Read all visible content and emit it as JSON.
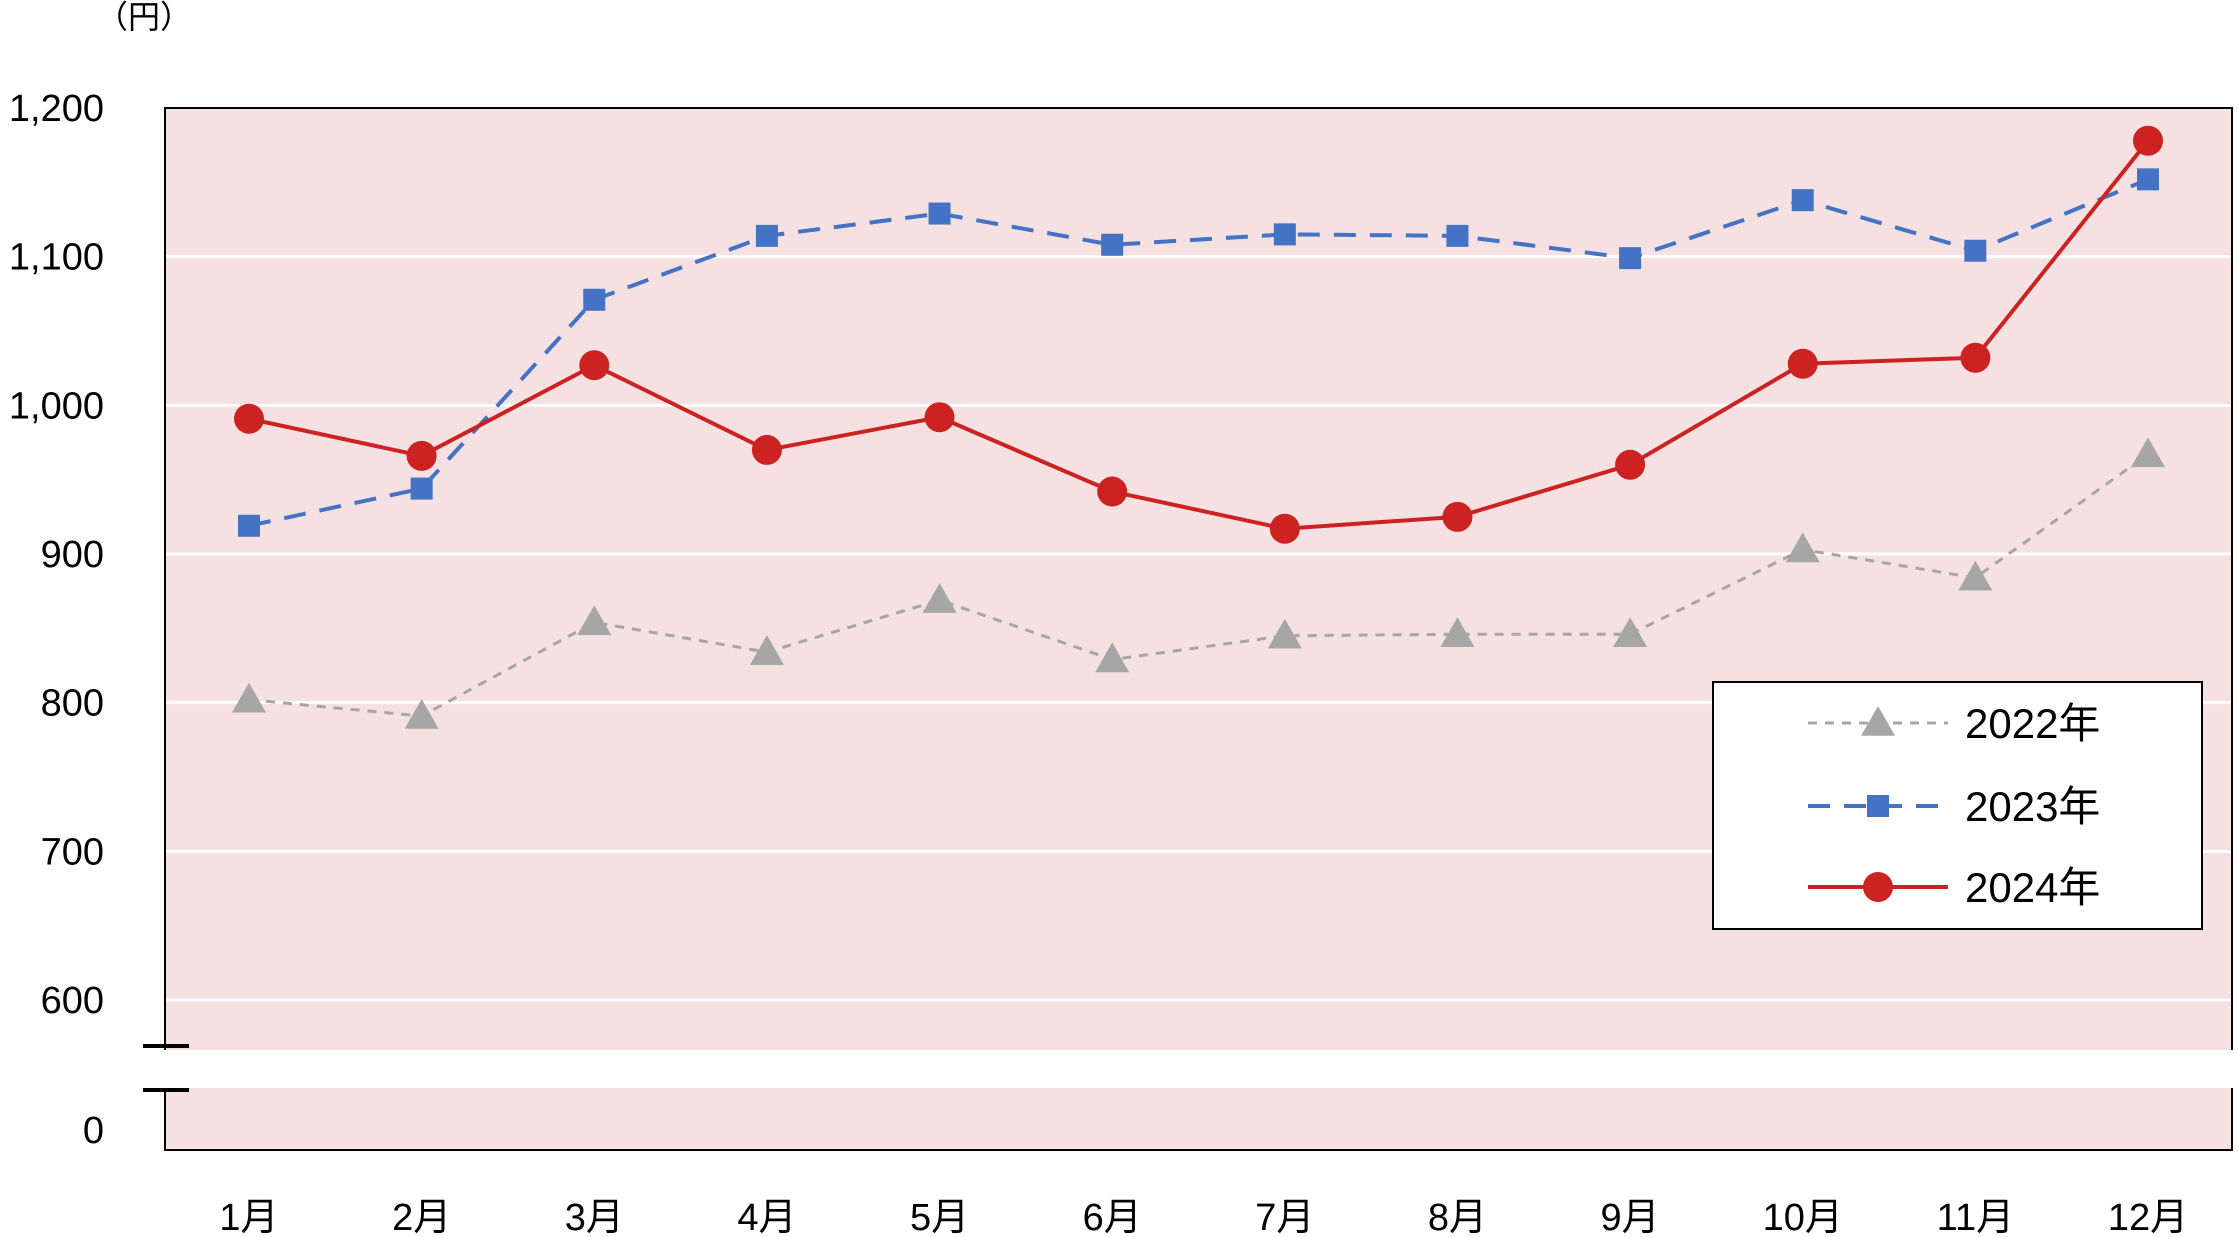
{
  "chart_data": {
    "type": "line",
    "unit": "（円）",
    "categories": [
      "1月",
      "2月",
      "3月",
      "4月",
      "5月",
      "6月",
      "7月",
      "8月",
      "9月",
      "10月",
      "11月",
      "12月"
    ],
    "y_ticks": [
      "0",
      "600",
      "700",
      "800",
      "900",
      "1,000",
      "1,100",
      "1,200"
    ],
    "ylim": [
      600,
      1200
    ],
    "axis_break": true,
    "grid": true,
    "legend_position": "right",
    "series": [
      {
        "name": "2022年",
        "color": "#a6a6a6",
        "line_style": "dotted",
        "marker": "triangle",
        "values": [
          802,
          791,
          854,
          834,
          869,
          829,
          845,
          846,
          846,
          903,
          884,
          967
        ]
      },
      {
        "name": "2023年",
        "color": "#4472c4",
        "line_style": "dashed",
        "marker": "square",
        "values": [
          919,
          944,
          1071,
          1114,
          1129,
          1108,
          1115,
          1114,
          1099,
          1138,
          1104,
          1152
        ]
      },
      {
        "name": "2024年",
        "color": "#cc2222",
        "line_style": "solid",
        "marker": "circle",
        "values": [
          991,
          966,
          1027,
          970,
          992,
          942,
          917,
          925,
          960,
          1028,
          1032,
          1178
        ]
      }
    ]
  }
}
